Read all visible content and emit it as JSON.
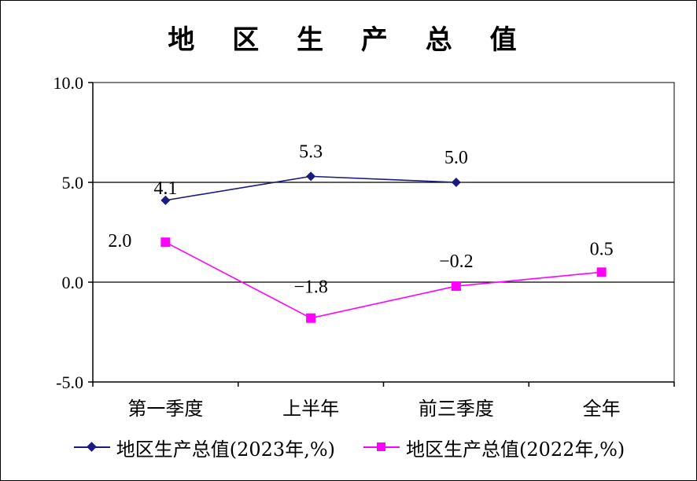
{
  "chart_data": {
    "type": "line",
    "title": "地 区 生 产 总 值",
    "categories": [
      "第一季度",
      "上半年",
      "前三季度",
      "全年"
    ],
    "ylim": [
      -5.0,
      10.0
    ],
    "yticks": [
      "10.0",
      "5.0",
      "0.0",
      "-5.0"
    ],
    "ytick_values": [
      10,
      5,
      0,
      -5
    ],
    "gridlines": [
      5,
      0
    ],
    "legend_position": "bottom",
    "series": [
      {
        "name": "地区生产总值(2023年,%)",
        "color": "#1a1a80",
        "marker": "diamond",
        "values": [
          4.1,
          5.3,
          5.0,
          null
        ],
        "labels": [
          "4.1",
          "5.3",
          "5.0",
          ""
        ]
      },
      {
        "name": "地区生产总值(2022年,%)",
        "color": "#ff00ff",
        "marker": "square",
        "values": [
          2.0,
          -1.8,
          -0.2,
          0.5
        ],
        "labels": [
          "2.0",
          "−1.8",
          "−0.2",
          "0.5"
        ]
      }
    ]
  }
}
